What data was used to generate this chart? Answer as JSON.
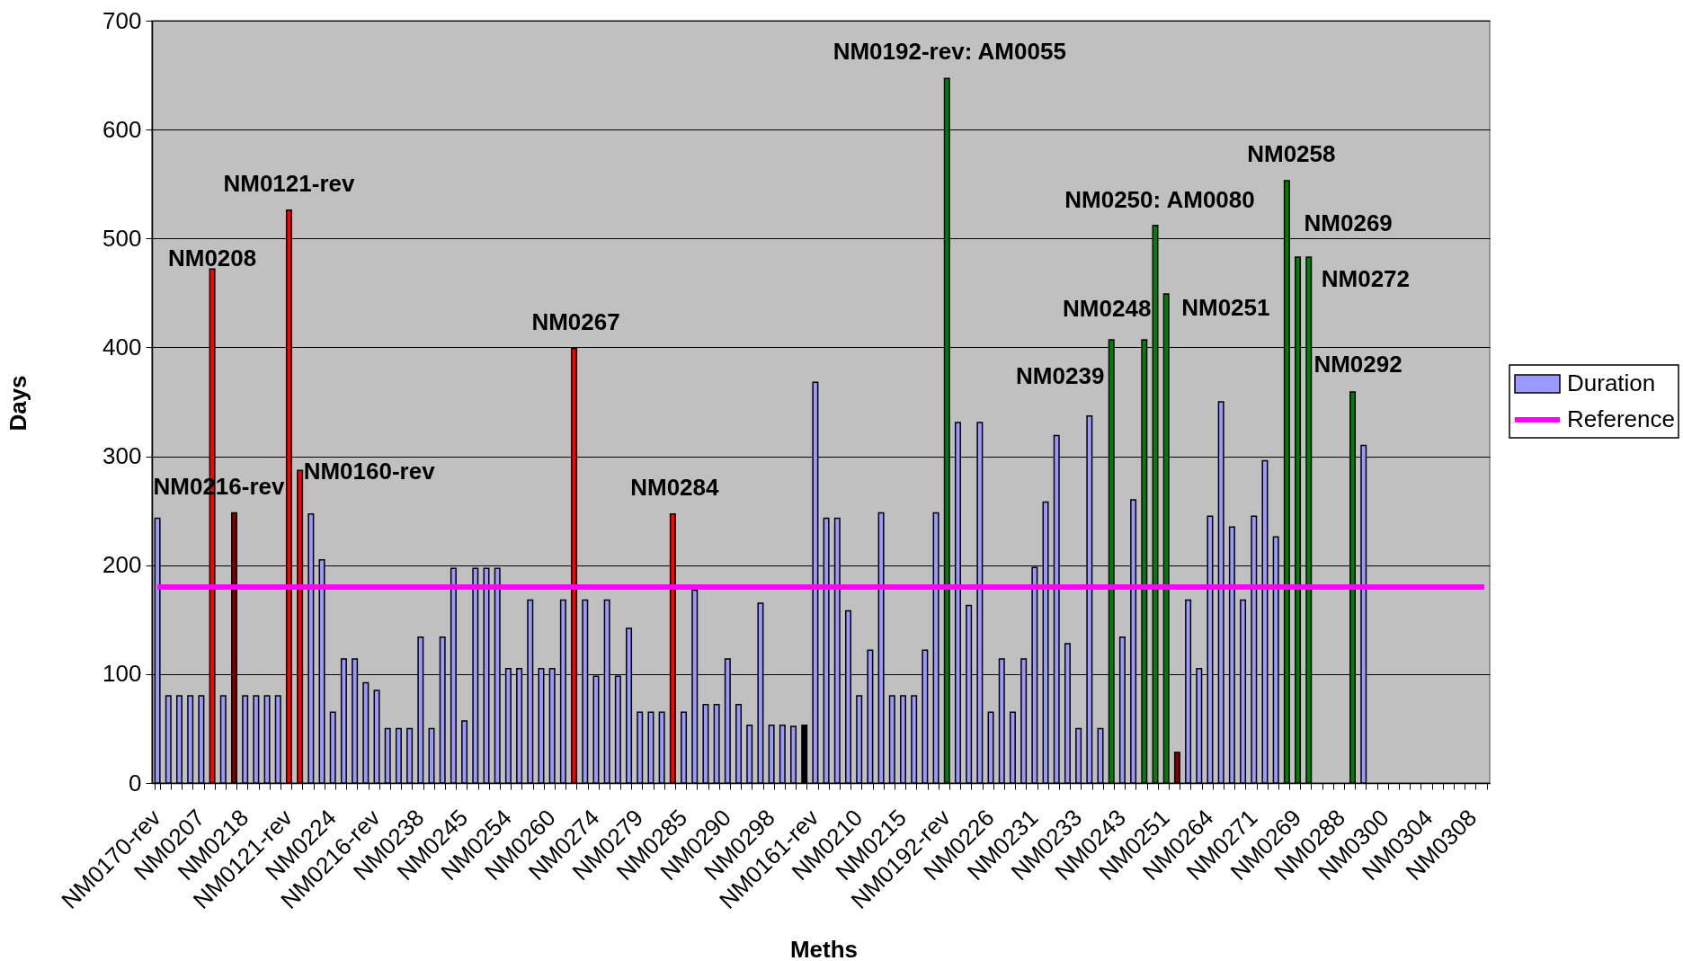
{
  "chart_data": {
    "type": "bar",
    "xlabel": "Meths",
    "ylabel": "Days",
    "categories": [
      "NM0170-rev",
      null,
      null,
      null,
      "NM0207",
      null,
      null,
      null,
      "NM0218",
      null,
      null,
      null,
      "NM0121-rev",
      null,
      null,
      null,
      "NM0224",
      null,
      null,
      null,
      "NM0216-rev",
      null,
      null,
      null,
      "NM0238",
      null,
      null,
      null,
      "NM0245",
      null,
      null,
      null,
      "NM0254",
      null,
      null,
      null,
      "NM0260",
      null,
      null,
      null,
      "NM0274",
      null,
      null,
      null,
      "NM0279",
      null,
      null,
      null,
      "NM0285",
      null,
      null,
      null,
      "NM0290",
      null,
      null,
      null,
      "NM0298",
      null,
      null,
      null,
      "NM0161-rev",
      null,
      null,
      null,
      "NM0210",
      null,
      null,
      null,
      "NM0215",
      null,
      null,
      null,
      "NM0192-rev",
      null,
      null,
      null,
      "NM0226",
      null,
      null,
      null,
      "NM0231",
      null,
      null,
      null,
      "NM0233",
      null,
      null,
      null,
      "NM0243",
      null,
      null,
      null,
      "NM0251",
      null,
      null,
      null,
      "NM0264",
      null,
      null,
      null,
      "NM0271",
      null,
      null,
      null,
      "NM0269",
      null,
      null,
      null,
      "NM0288",
      null,
      null,
      null,
      "NM0300",
      null,
      null,
      null,
      "NM0304",
      null,
      null,
      null,
      "NM0308",
      null
    ],
    "series": [
      {
        "name": "Duration",
        "color": "#9999ff",
        "colors": [
          "#9999ff",
          "#9999ff",
          "#9999ff",
          "#9999ff",
          "#9999ff",
          "#ff0000",
          "#9999ff",
          "#800000",
          "#9999ff",
          "#9999ff",
          "#9999ff",
          "#9999ff",
          "#ff0000",
          "#ff0000",
          "#9999ff",
          "#9999ff",
          "#9999ff",
          "#9999ff",
          "#9999ff",
          "#9999ff",
          "#9999ff",
          "#9999ff",
          "#9999ff",
          "#9999ff",
          "#9999ff",
          "#9999ff",
          "#9999ff",
          "#9999ff",
          "#9999ff",
          "#9999ff",
          "#9999ff",
          "#9999ff",
          "#9999ff",
          "#9999ff",
          "#9999ff",
          "#9999ff",
          "#9999ff",
          "#9999ff",
          "#ff0000",
          "#9999ff",
          "#9999ff",
          "#9999ff",
          "#9999ff",
          "#9999ff",
          "#9999ff",
          "#9999ff",
          "#9999ff",
          "#ff0000",
          "#9999ff",
          "#9999ff",
          "#9999ff",
          "#9999ff",
          "#9999ff",
          "#9999ff",
          "#9999ff",
          "#9999ff",
          "#9999ff",
          "#9999ff",
          "#9999ff",
          "#000000",
          "#9999ff",
          "#9999ff",
          "#9999ff",
          "#9999ff",
          "#9999ff",
          "#9999ff",
          "#9999ff",
          "#9999ff",
          "#9999ff",
          "#9999ff",
          "#9999ff",
          "#9999ff",
          "#008000",
          "#9999ff",
          "#9999ff",
          "#9999ff",
          "#9999ff",
          "#9999ff",
          "#9999ff",
          "#9999ff",
          "#9999ff",
          "#9999ff",
          "#9999ff",
          "#9999ff",
          "#9999ff",
          "#9999ff",
          "#9999ff",
          "#008000",
          "#9999ff",
          "#9999ff",
          "#008000",
          "#008000",
          "#008000",
          "#800000",
          "#9999ff",
          "#9999ff",
          "#9999ff",
          "#9999ff",
          "#9999ff",
          "#9999ff",
          "#9999ff",
          "#9999ff",
          "#9999ff",
          "#008000",
          "#008000",
          "#008000",
          null,
          null,
          null,
          "#008000",
          "#9999ff",
          null,
          null,
          null,
          null,
          null,
          null,
          null,
          null,
          null,
          null,
          null
        ],
        "values": [
          243,
          80,
          80,
          80,
          80,
          472,
          80,
          248,
          80,
          80,
          80,
          80,
          526,
          287,
          247,
          205,
          65,
          114,
          114,
          92,
          85,
          50,
          50,
          50,
          134,
          50,
          134,
          197,
          57,
          197,
          197,
          197,
          105,
          105,
          168,
          105,
          105,
          168,
          399,
          168,
          98,
          168,
          98,
          142,
          65,
          65,
          65,
          247,
          65,
          177,
          72,
          72,
          114,
          72,
          53,
          165,
          53,
          53,
          52,
          53,
          368,
          243,
          243,
          158,
          80,
          122,
          248,
          80,
          80,
          80,
          122,
          248,
          647,
          331,
          163,
          331,
          65,
          114,
          65,
          114,
          198,
          258,
          319,
          128,
          50,
          337,
          50,
          407,
          134,
          260,
          407,
          512,
          449,
          28,
          168,
          105,
          245,
          350,
          235,
          168,
          245,
          296,
          226,
          553,
          483,
          483,
          null,
          null,
          null,
          359,
          310,
          null,
          null,
          null,
          null,
          null,
          null,
          null,
          null,
          null,
          null,
          null
        ]
      },
      {
        "name": "Reference",
        "type": "line",
        "color": "#ff00ff",
        "values": [
          180,
          180,
          180,
          180,
          180,
          180,
          180,
          180,
          180,
          180,
          180,
          180,
          180,
          180,
          180,
          180,
          180,
          180,
          180,
          180,
          180,
          180,
          180,
          180,
          180,
          180,
          180,
          180,
          180,
          180,
          180,
          180,
          180,
          180,
          180,
          180,
          180,
          180,
          180,
          180,
          180,
          180,
          180,
          180,
          180,
          180,
          180,
          180,
          180,
          180,
          180,
          180,
          180,
          180,
          180,
          180,
          180,
          180,
          180,
          180,
          180,
          180,
          180,
          180,
          180,
          180,
          180,
          180,
          180,
          180,
          180,
          180,
          180,
          180,
          180,
          180,
          180,
          180,
          180,
          180,
          180,
          180,
          180,
          180,
          180,
          180,
          180,
          180,
          180,
          180,
          180,
          180,
          180,
          180,
          180,
          180,
          180,
          180,
          180,
          180,
          180,
          180,
          180,
          180,
          180,
          180,
          180,
          180,
          180,
          180,
          180,
          180,
          180,
          180,
          180,
          180,
          180,
          180,
          180,
          180,
          180,
          180
        ]
      }
    ],
    "ylim": [
      0,
      700
    ],
    "yticks": [
      0,
      100,
      200,
      300,
      400,
      500,
      600,
      700
    ],
    "grid": "y",
    "legend": "right",
    "annotations": [
      "NM0216-rev",
      "NM0208",
      "NM0121-rev",
      "NM0160-rev",
      "NM0267",
      "NM0284",
      "NM0192-rev: AM0055",
      "NM0239",
      "NM0248",
      "NM0250: AM0080",
      "NM0251",
      "NM0258",
      "NM0269",
      "NM0272",
      "NM0292"
    ]
  }
}
